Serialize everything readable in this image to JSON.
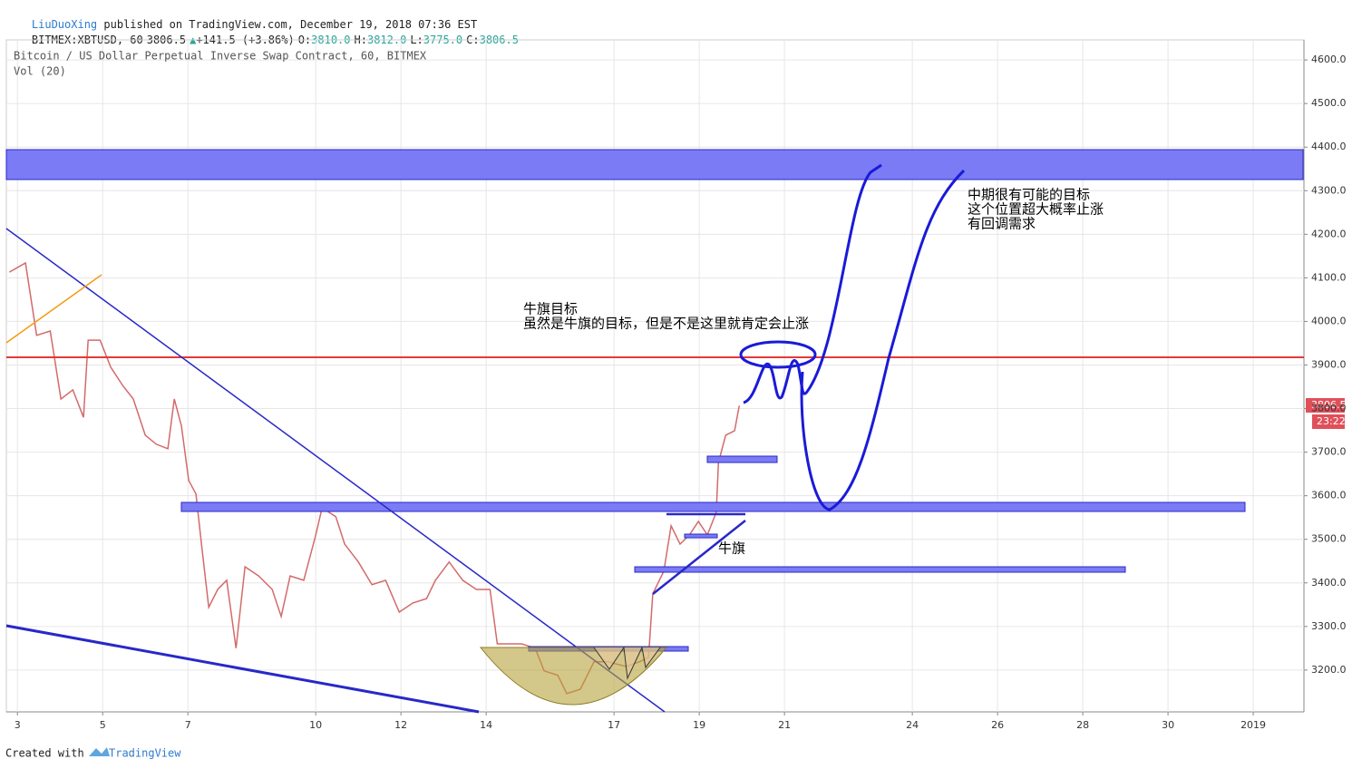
{
  "header": {
    "author": "LiuDuoXing",
    "published": "published on TradingView.com, December 19, 2018 07:36 EST",
    "symbol": "BITMEX:XBTUSD, 60",
    "last": "3806.5",
    "change": "+141.5 (+3.86%)",
    "open_label": "O:",
    "open": "3810.0",
    "high_label": "H:",
    "high": "3812.0",
    "low_label": "L:",
    "low": "3775.0",
    "close_label": "C:",
    "close": "3806.5"
  },
  "chart_data": {
    "type": "line",
    "legend_title": "Bitcoin / US Dollar Perpetual Inverse Swap Contract, 60, BITMEX",
    "indicator": "Vol (20)",
    "price_label": "3806.5",
    "time_label": "23:22",
    "annotations": [
      "牛旗目标",
      "虽然是牛旗的目标，但是不是这里就肯定会止涨",
      "中期很有可能的目标",
      "这个位置超大概率止涨",
      "有回调需求",
      "牛旗"
    ],
    "footer": "Created with",
    "brand": "TradingView",
    "color": "#d46a6a",
    "x": [
      2.81,
      3.19,
      3.45,
      3.77,
      4.02,
      4.3,
      4.55,
      4.66,
      4.94,
      5.19,
      5.47,
      5.72,
      6.0,
      6.26,
      6.53,
      6.68,
      6.85,
      7.02,
      7.19,
      7.32,
      7.49,
      7.7,
      7.91,
      8.13,
      8.34,
      8.66,
      8.98,
      9.19,
      9.4,
      9.72,
      10.0,
      10.15,
      10.47,
      10.68,
      11.0,
      11.32,
      11.64,
      11.96,
      12.28,
      12.6,
      12.81,
      13.13,
      13.45,
      13.77,
      14.09,
      14.26,
      14.51,
      14.83,
      15.15,
      15.36,
      15.68,
      15.89,
      16.21,
      16.53,
      16.85,
      17.28,
      17.6,
      17.81,
      17.91,
      18.17,
      18.34,
      18.55,
      18.77,
      18.98,
      19.19,
      19.4,
      19.45,
      19.62,
      19.83,
      19.94
    ],
    "values": [
      4113,
      4134,
      3968,
      3978,
      3822,
      3843,
      3780,
      3957,
      3957,
      3895,
      3853,
      3822,
      3739,
      3718,
      3708,
      3822,
      3760,
      3635,
      3604,
      3489,
      3344,
      3385,
      3406,
      3250,
      3437,
      3416,
      3385,
      3323,
      3416,
      3406,
      3510,
      3572,
      3552,
      3489,
      3448,
      3396,
      3406,
      3333,
      3354,
      3364,
      3406,
      3448,
      3406,
      3385,
      3385,
      3260,
      3260,
      3260,
      3250,
      3198,
      3188,
      3146,
      3156,
      3219,
      3219,
      3208,
      3219,
      3229,
      3375,
      3427,
      3531,
      3489,
      3510,
      3541,
      3510,
      3562,
      3676,
      3739,
      3749,
      3806.5
    ],
    "xlim": [
      2.74,
      33.19
    ],
    "xticks": [
      3,
      5,
      7,
      10,
      12,
      14,
      17,
      19,
      21,
      24,
      26,
      28,
      30,
      {
        "value": 32,
        "label": "2019"
      }
    ],
    "ylim": [
      3104,
      4646
    ],
    "yticks": [
      {
        "value": 3200,
        "label": "3200.0"
      },
      {
        "value": 3300,
        "label": "3300.0"
      },
      {
        "value": 3400,
        "label": "3400.0"
      },
      {
        "value": 3500,
        "label": "3500.0"
      },
      {
        "value": 3600,
        "label": "3600.0"
      },
      {
        "value": 3700,
        "label": "3700.0"
      },
      {
        "value": 3800,
        "label": "3800.0"
      },
      {
        "value": 3900,
        "label": "3900.0"
      },
      {
        "value": 4000,
        "label": "4000.0"
      },
      {
        "value": 4100,
        "label": "4100.0"
      },
      {
        "value": 4200,
        "label": "4200.0"
      },
      {
        "value": 4300,
        "label": "4300.0"
      },
      {
        "value": 4400,
        "label": "4400.0"
      },
      {
        "value": 4500,
        "label": "4500.0"
      },
      {
        "value": 4600,
        "label": "4600.0"
      }
    ],
    "grid": true
  }
}
